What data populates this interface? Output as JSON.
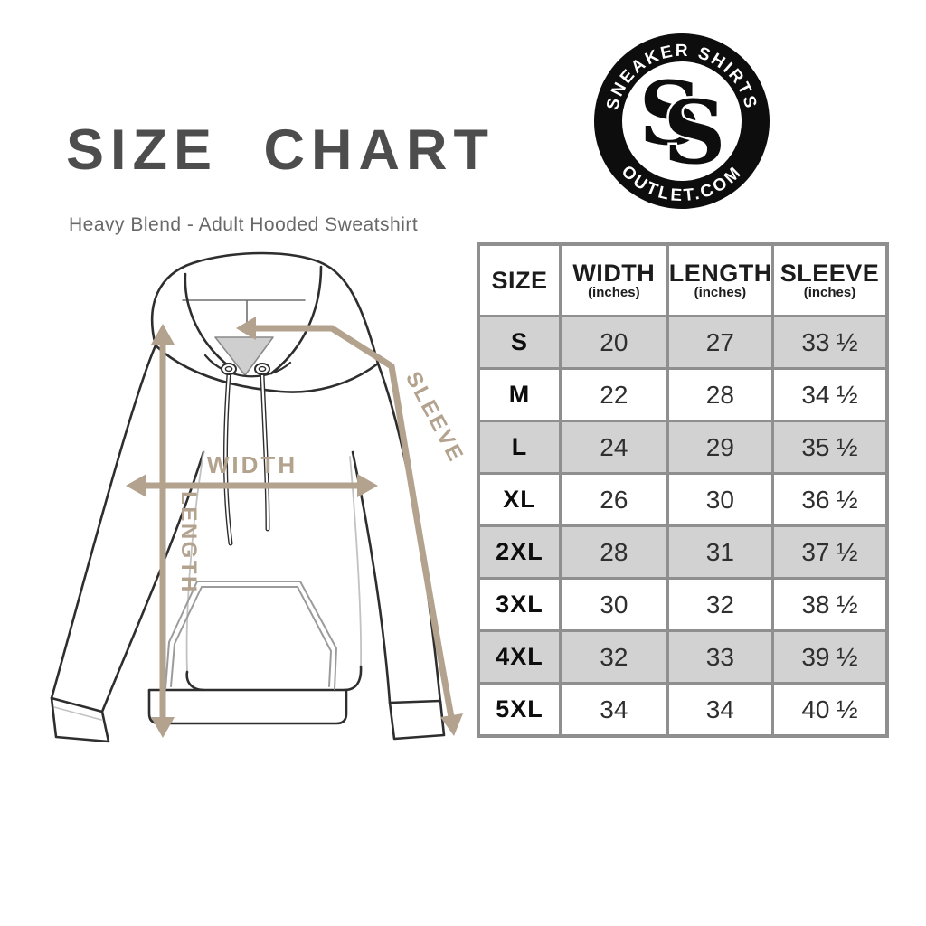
{
  "page": {
    "title": "SIZE CHART",
    "subtitle": "Heavy Blend - Adult Hooded Sweatshirt"
  },
  "logo": {
    "top_text": "SNEAKER SHIRTS",
    "bottom_text": "OUTLET.COM",
    "monogram": "SS",
    "monogram_letters": [
      "S",
      "S"
    ]
  },
  "diagram": {
    "labels": {
      "width": "WIDTH",
      "length": "LENGTH",
      "sleeve": "SLEEVE"
    },
    "arrow_color": "#b3a28e"
  },
  "size_table": {
    "columns": [
      {
        "label": "SIZE",
        "sub": ""
      },
      {
        "label": "WIDTH",
        "sub": "(inches)"
      },
      {
        "label": "LENGTH",
        "sub": "(inches)"
      },
      {
        "label": "SLEEVE",
        "sub": "(inches)"
      }
    ],
    "rows": [
      {
        "size": "S",
        "width": "20",
        "length": "27",
        "sleeve": "33 ½",
        "shaded": true
      },
      {
        "size": "M",
        "width": "22",
        "length": "28",
        "sleeve": "34 ½",
        "shaded": false
      },
      {
        "size": "L",
        "width": "24",
        "length": "29",
        "sleeve": "35 ½",
        "shaded": true
      },
      {
        "size": "XL",
        "width": "26",
        "length": "30",
        "sleeve": "36 ½",
        "shaded": false
      },
      {
        "size": "2XL",
        "width": "28",
        "length": "31",
        "sleeve": "37 ½",
        "shaded": true
      },
      {
        "size": "3XL",
        "width": "30",
        "length": "32",
        "sleeve": "38 ½",
        "shaded": false
      },
      {
        "size": "4XL",
        "width": "32",
        "length": "33",
        "sleeve": "39 ½",
        "shaded": true
      },
      {
        "size": "5XL",
        "width": "34",
        "length": "34",
        "sleeve": "40 ½",
        "shaded": false
      }
    ]
  },
  "chart_data": {
    "type": "table",
    "title": "SIZE CHART",
    "subtitle": "Heavy Blend - Adult Hooded Sweatshirt",
    "columns": [
      "SIZE",
      "WIDTH (inches)",
      "LENGTH (inches)",
      "SLEEVE (inches)"
    ],
    "rows": [
      [
        "S",
        20,
        27,
        33.5
      ],
      [
        "M",
        22,
        28,
        34.5
      ],
      [
        "L",
        24,
        29,
        35.5
      ],
      [
        "XL",
        26,
        30,
        36.5
      ],
      [
        "2XL",
        28,
        31,
        37.5
      ],
      [
        "3XL",
        30,
        32,
        38.5
      ],
      [
        "4XL",
        32,
        33,
        39.5
      ],
      [
        "5XL",
        34,
        34,
        40.5
      ]
    ]
  },
  "colors": {
    "arrow_tan": "#b3a28e",
    "title_gray": "#4d4d4d",
    "subtitle_gray": "#686868",
    "row_shade": "#d2d2d2",
    "table_border": "#8f8f8f",
    "outline_dark": "#2e2e2e",
    "logo_black": "#0d0d0d"
  }
}
